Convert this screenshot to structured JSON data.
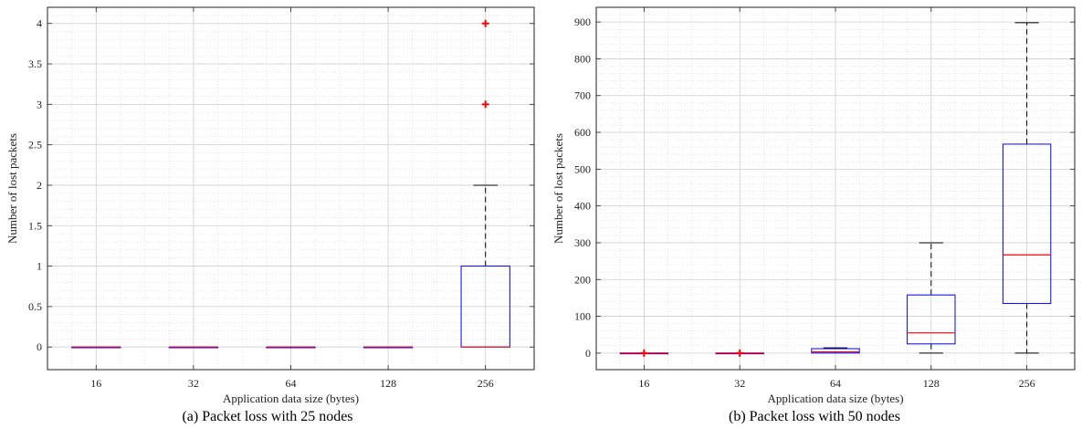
{
  "chart_data": [
    {
      "type": "box",
      "caption": "(a) Packet loss with 25 nodes",
      "xlabel": "Application data size (bytes)",
      "ylabel": "Number of lost packets",
      "categories": [
        "16",
        "32",
        "64",
        "128",
        "256"
      ],
      "ylim": [
        -0.28,
        4.2
      ],
      "yticks": [
        0,
        0.5,
        1,
        1.5,
        2,
        2.5,
        3,
        3.5,
        4
      ],
      "yticklabels": [
        "0",
        "0.5",
        "1",
        "1.5",
        "2",
        "2.5",
        "3",
        "3.5",
        "4"
      ],
      "boxes": [
        {
          "q1": 0,
          "median": 0,
          "q3": 0,
          "whisker_low": 0,
          "whisker_high": 0,
          "outliers": []
        },
        {
          "q1": 0,
          "median": 0,
          "q3": 0,
          "whisker_low": 0,
          "whisker_high": 0,
          "outliers": []
        },
        {
          "q1": 0,
          "median": 0,
          "q3": 0,
          "whisker_low": 0,
          "whisker_high": 0,
          "outliers": []
        },
        {
          "q1": 0,
          "median": 0,
          "q3": 0,
          "whisker_low": 0,
          "whisker_high": 0,
          "outliers": []
        },
        {
          "q1": 0,
          "median": 0,
          "q3": 1,
          "whisker_low": 0,
          "whisker_high": 2,
          "outliers": [
            3,
            4
          ]
        }
      ],
      "grid": true,
      "colors": {
        "box": "#0000ff",
        "median": "#ff0000",
        "outlier": "#ff0000",
        "whisker": "#000000"
      }
    },
    {
      "type": "box",
      "caption": "(b) Packet loss with 50 nodes",
      "xlabel": "Application data size (bytes)",
      "ylabel": "Number of lost packets",
      "categories": [
        "16",
        "32",
        "64",
        "128",
        "256"
      ],
      "ylim": [
        -45,
        940
      ],
      "yticks": [
        0,
        100,
        200,
        300,
        400,
        500,
        600,
        700,
        800,
        900
      ],
      "yticklabels": [
        "0",
        "100",
        "200",
        "300",
        "400",
        "500",
        "600",
        "700",
        "800",
        "900"
      ],
      "boxes": [
        {
          "q1": 0,
          "median": 0,
          "q3": 0,
          "whisker_low": 0,
          "whisker_high": 0,
          "outliers": [
            0
          ]
        },
        {
          "q1": 0,
          "median": 0,
          "q3": 0,
          "whisker_low": 0,
          "whisker_high": 0,
          "outliers": [
            0
          ]
        },
        {
          "q1": 0,
          "median": 3,
          "q3": 12,
          "whisker_low": 0,
          "whisker_high": 14,
          "outliers": []
        },
        {
          "q1": 25,
          "median": 55,
          "q3": 158,
          "whisker_low": 0,
          "whisker_high": 300,
          "outliers": []
        },
        {
          "q1": 135,
          "median": 267,
          "q3": 568,
          "whisker_low": 0,
          "whisker_high": 898,
          "outliers": []
        }
      ],
      "grid": true,
      "colors": {
        "box": "#0000ff",
        "median": "#ff0000",
        "outlier": "#ff0000",
        "whisker": "#000000"
      }
    }
  ]
}
